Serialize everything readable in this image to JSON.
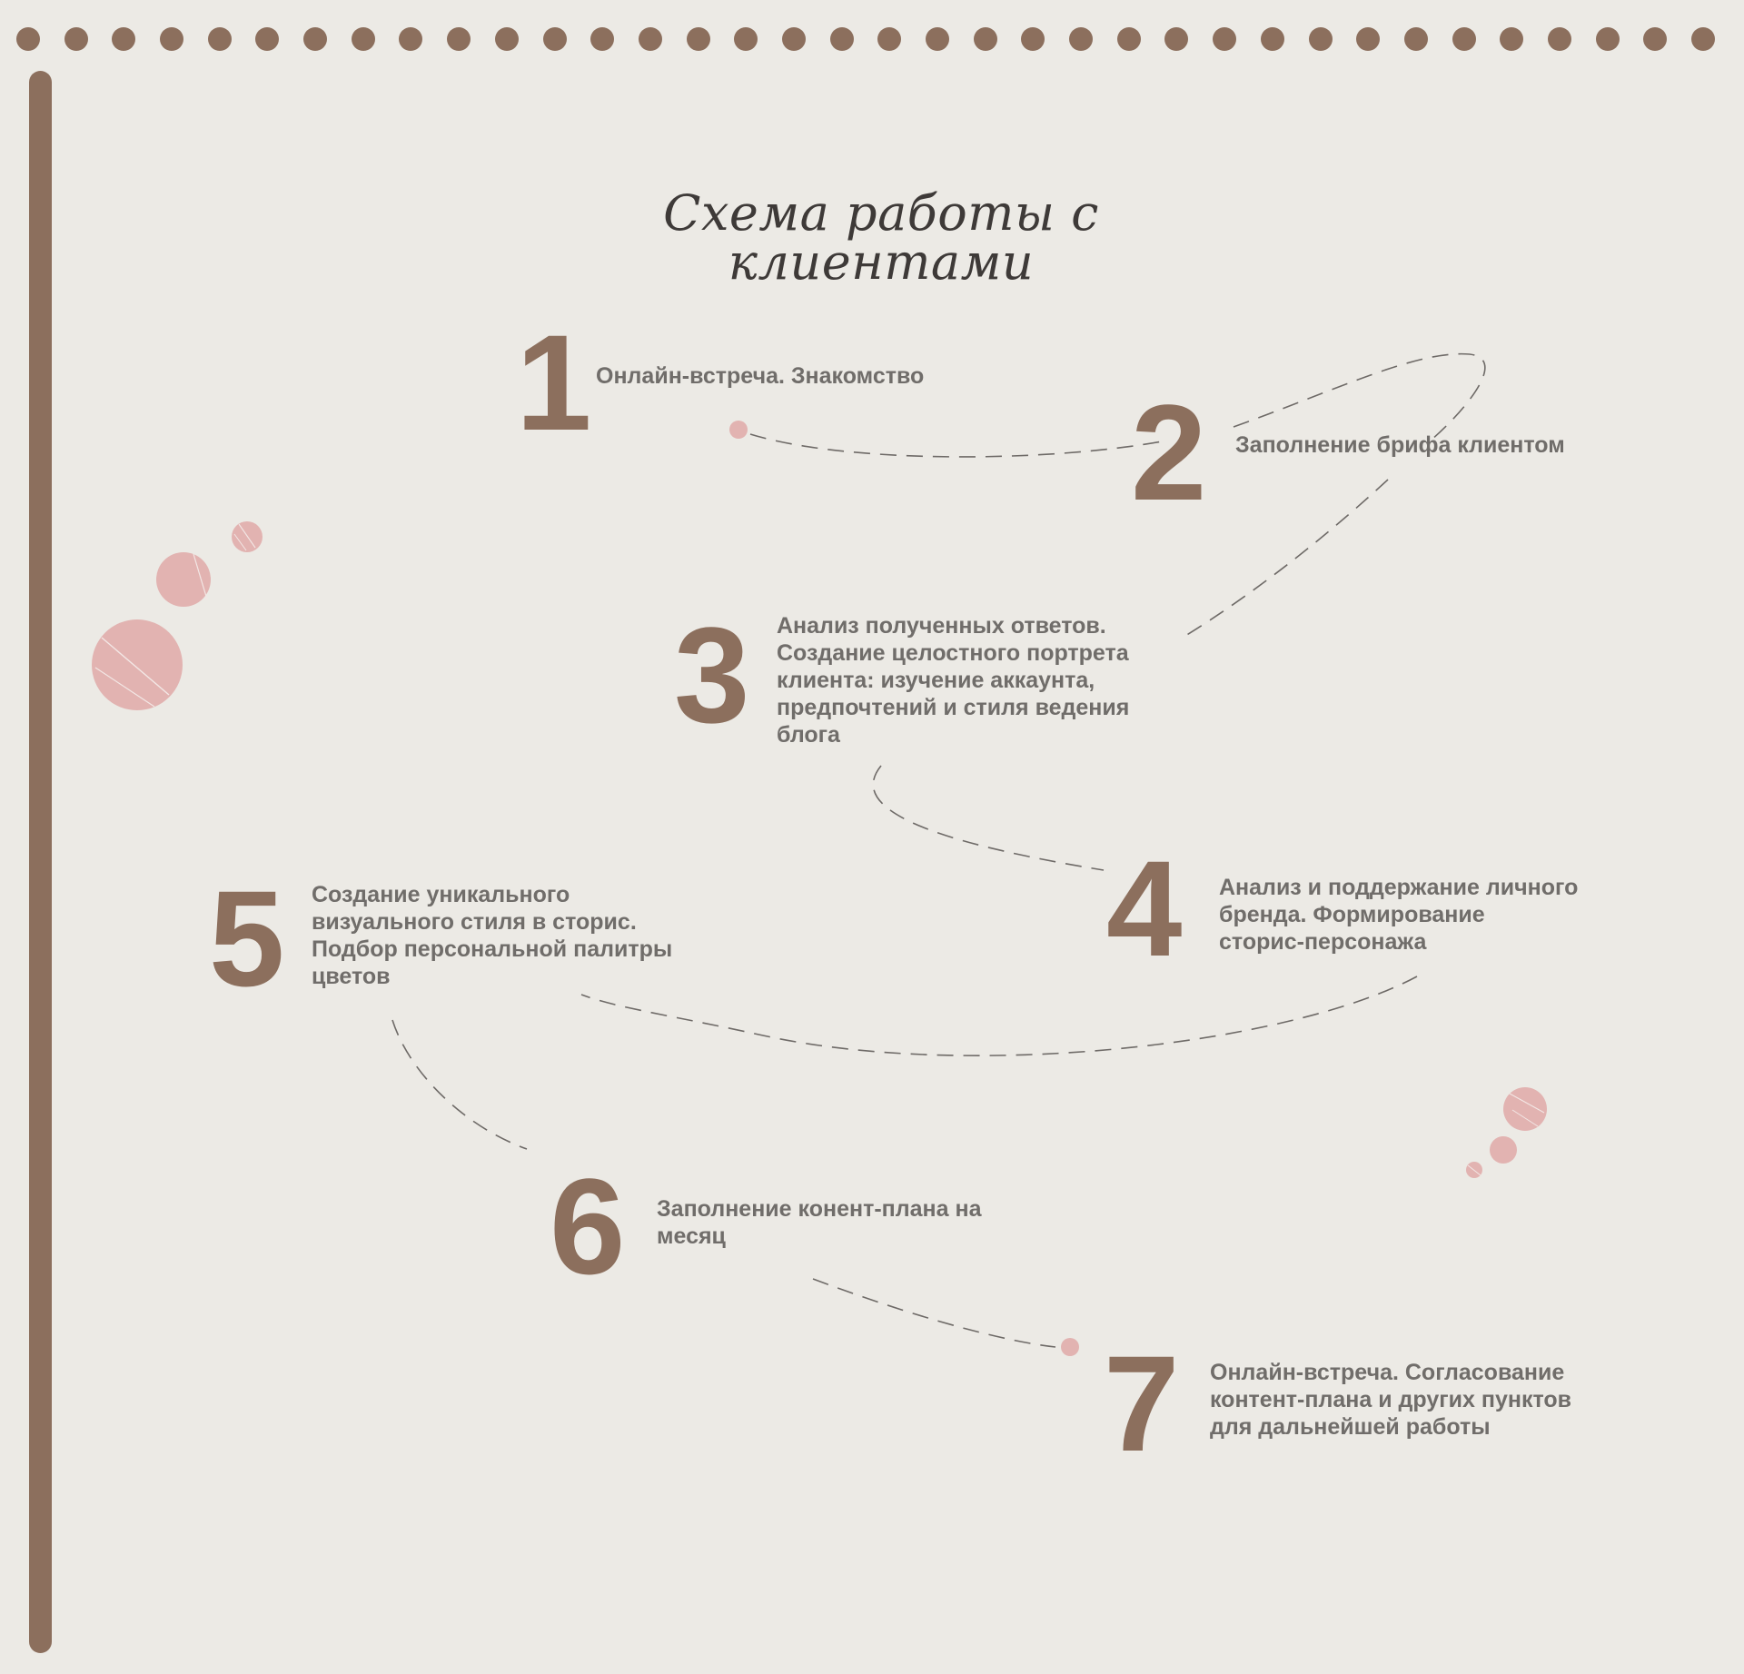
{
  "title": "Схема работы с клиентами",
  "colors": {
    "background": "#ECEAE5",
    "accent_brown": "#8C6F5D",
    "text_gray": "#706D6A",
    "title_dark": "#3E3A38",
    "pink": "#E2B3B1",
    "connector": "#6E6A67"
  },
  "steps": [
    {
      "number": "1",
      "text": "Онлайн-встреча. Знакомство"
    },
    {
      "number": "2",
      "text": "Заполнение брифа клиентом"
    },
    {
      "number": "3",
      "text": "Анализ полученных ответов.\nСоздание целостного портрета\nклиента: изучение аккаунта,\nпредпочтений и стиля ведения\nблога"
    },
    {
      "number": "4",
      "text": "Анализ и поддержание личного\nбренда. Формирование\nсторис-персонажа"
    },
    {
      "number": "5",
      "text": "Создание уникального\nвизуального стиля в сторис.\nПодбор персональной палитры\nцветов"
    },
    {
      "number": "6",
      "text": "Заполнение конент-плана на\nмесяц"
    },
    {
      "number": "7",
      "text": "Онлайн-встреча. Согласование\nконтент-плана и других пунктов\nдля дальнейшей работы"
    }
  ]
}
